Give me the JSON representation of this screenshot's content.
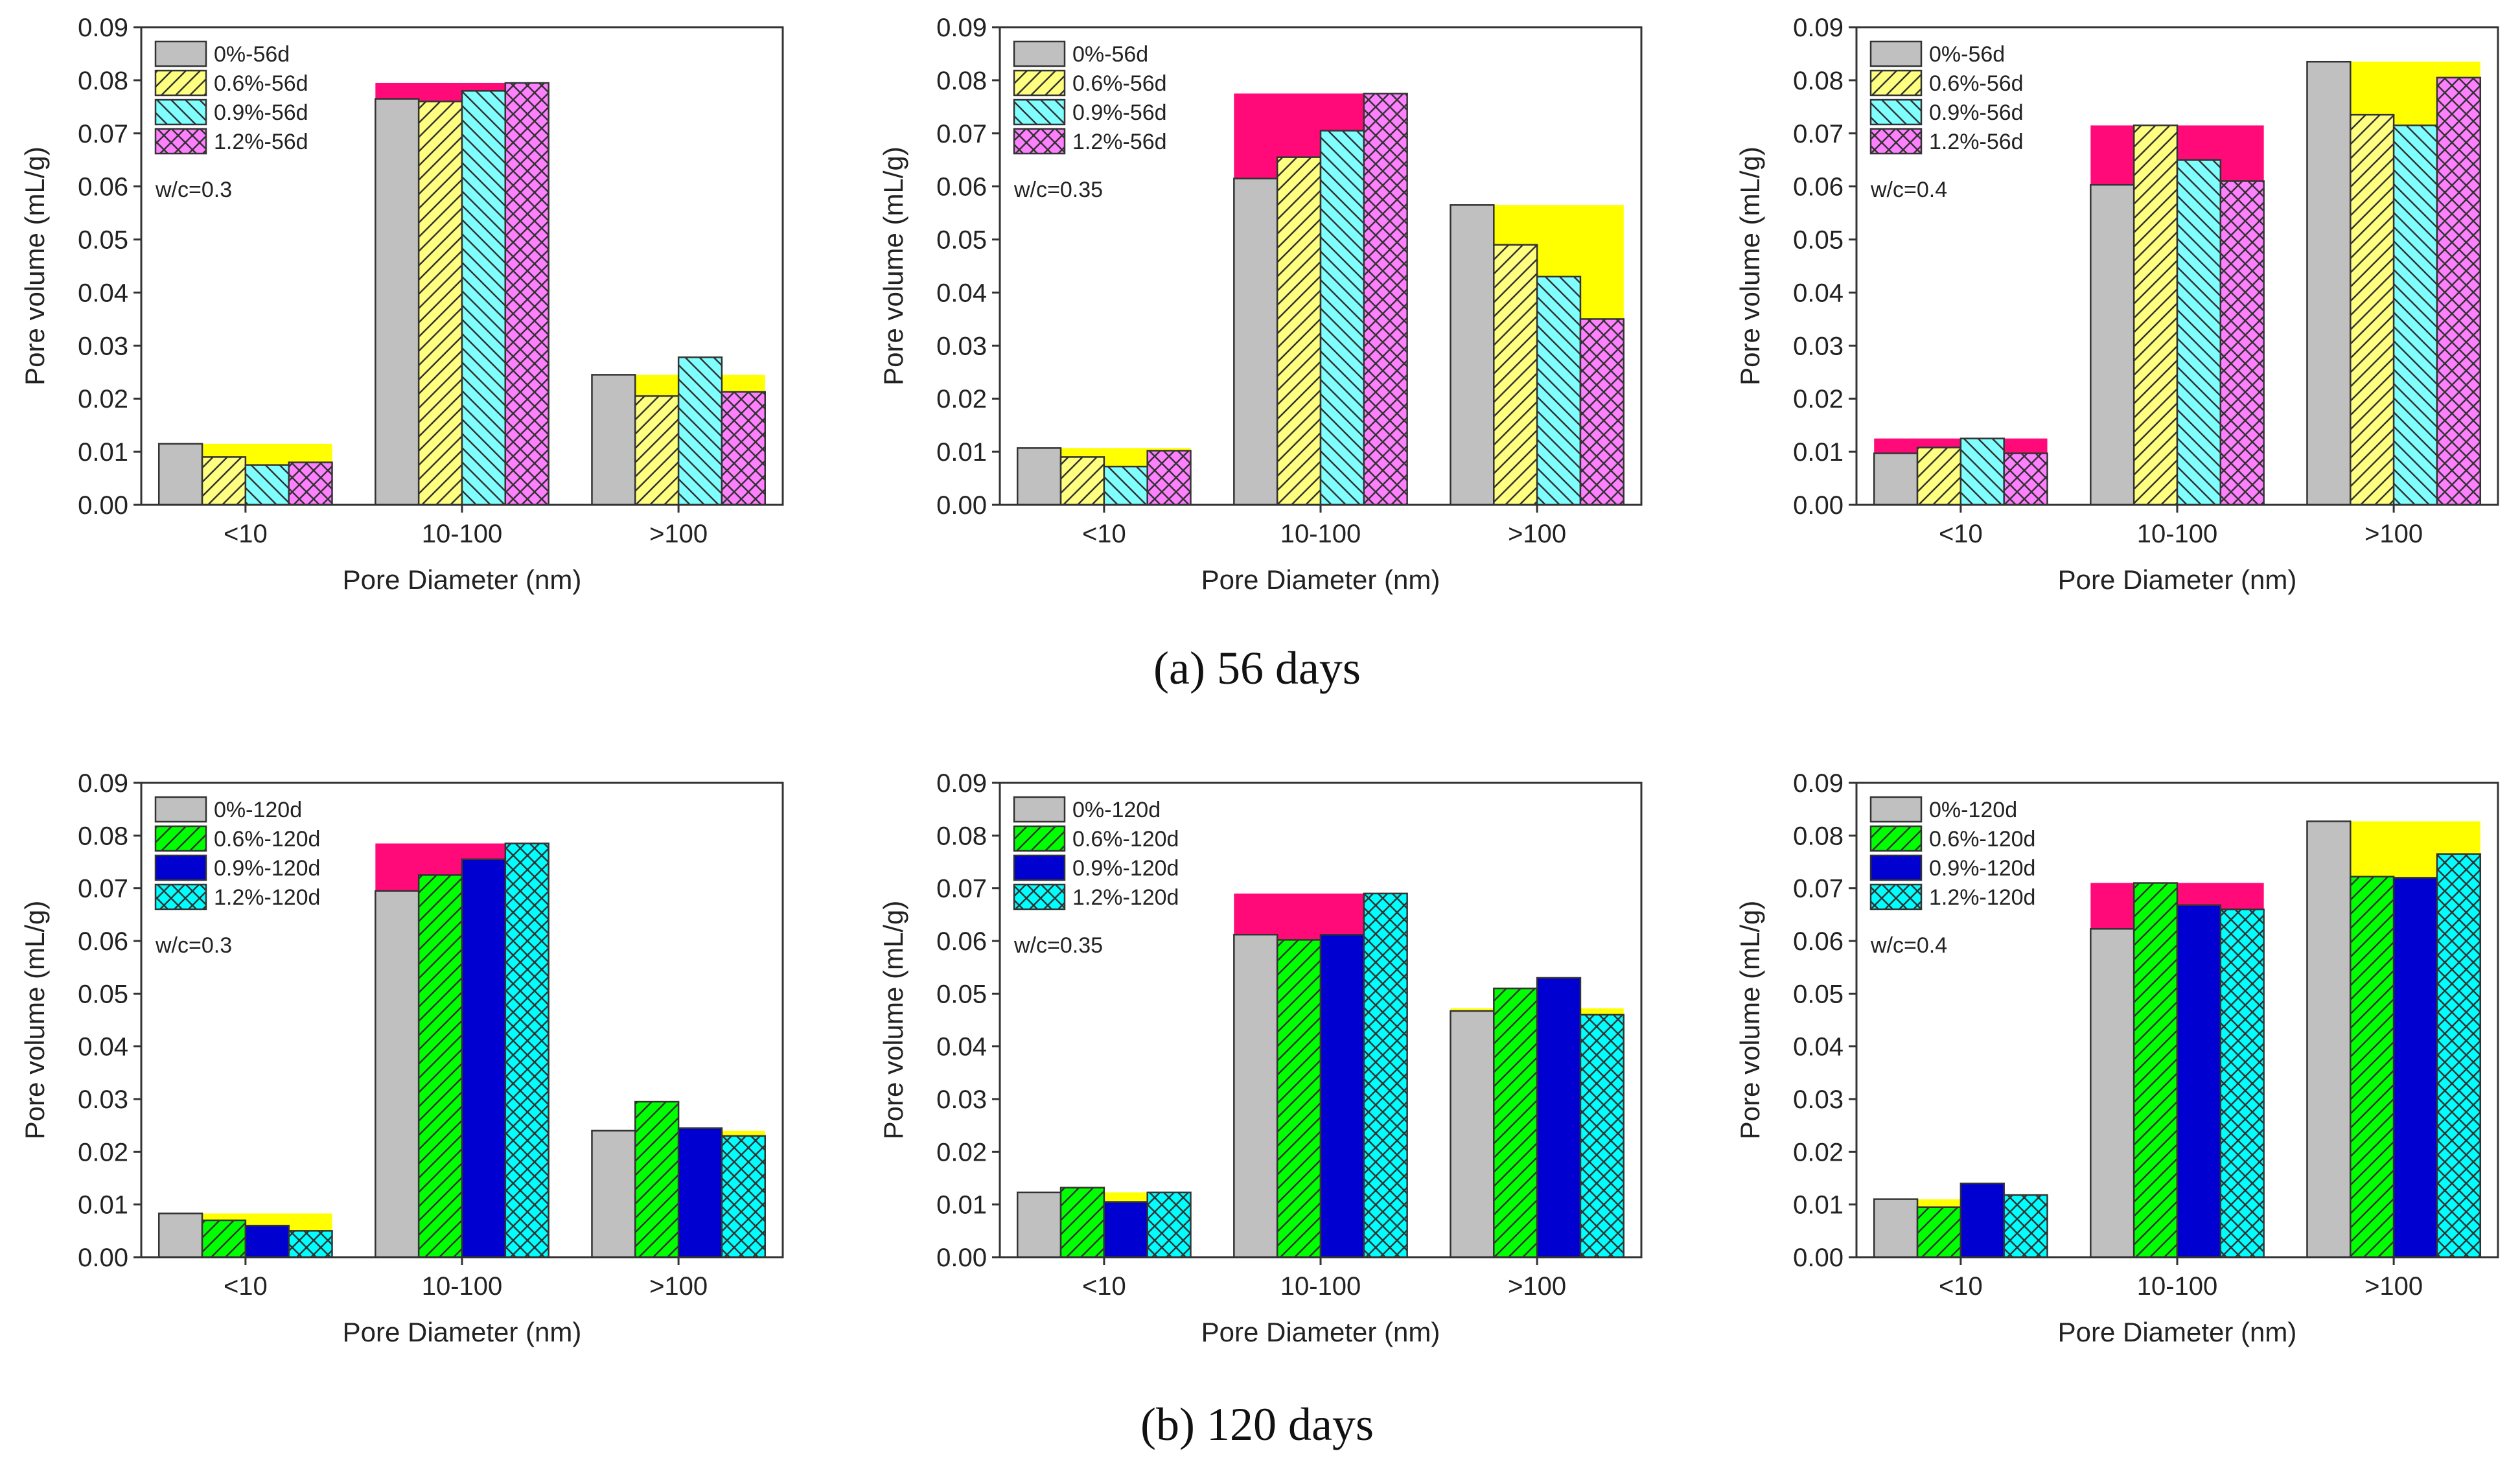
{
  "captions": {
    "a": "(a) 56 days",
    "b": "(b) 120 days"
  },
  "colors": {
    "band_pink": "#ff0a78",
    "band_yellow": "#ffff00",
    "gray": "#c0c0c0",
    "yellow": "#ffff80",
    "lightcyan": "#80ffff",
    "magenta": "#ff80ff",
    "green": "#00ff00",
    "blue": "#0000d0",
    "cyan": "#00ffff"
  },
  "chart_data": [
    {
      "type": "bar",
      "row": "a",
      "annotation": "w/c=0.3",
      "xlabel": "Pore Diameter (nm)",
      "ylabel": "Pore volume (mL/g)",
      "ylim": [
        0,
        0.09
      ],
      "yticks": [
        "0.00",
        "0.01",
        "0.02",
        "0.03",
        "0.04",
        "0.05",
        "0.06",
        "0.07",
        "0.08",
        "0.09"
      ],
      "legend_position": "top-left",
      "categories": [
        "<10",
        "10-100",
        ">100"
      ],
      "series": [
        {
          "name": "0%-56d",
          "fill": "gray",
          "pattern": "solid",
          "values": [
            0.0115,
            0.0765,
            0.0245
          ]
        },
        {
          "name": "0.6%-56d",
          "fill": "yellow",
          "pattern": "hatch-right",
          "values": [
            0.009,
            0.076,
            0.0205
          ]
        },
        {
          "name": "0.9%-56d",
          "fill": "lightcyan",
          "pattern": "hatch-left",
          "values": [
            0.0075,
            0.078,
            0.0278
          ]
        },
        {
          "name": "1.2%-56d",
          "fill": "magenta",
          "pattern": "cross",
          "values": [
            0.008,
            0.0795,
            0.0213
          ]
        }
      ],
      "bands": [
        {
          "category": 0,
          "from": 1,
          "to": 3,
          "top": 0.0115,
          "color": "band_yellow"
        },
        {
          "category": 1,
          "from": 0,
          "to": 2,
          "top": 0.0795,
          "color": "band_pink"
        },
        {
          "category": 2,
          "from": 1,
          "to": 3,
          "top": 0.0245,
          "color": "band_yellow"
        }
      ]
    },
    {
      "type": "bar",
      "row": "a",
      "annotation": "w/c=0.35",
      "xlabel": "Pore Diameter (nm)",
      "ylabel": "Pore volume (mL/g)",
      "ylim": [
        0,
        0.09
      ],
      "yticks": [
        "0.00",
        "0.01",
        "0.02",
        "0.03",
        "0.04",
        "0.05",
        "0.06",
        "0.07",
        "0.08",
        "0.09"
      ],
      "legend_position": "top-left",
      "categories": [
        "<10",
        "10-100",
        ">100"
      ],
      "series": [
        {
          "name": "0%-56d",
          "fill": "gray",
          "pattern": "solid",
          "values": [
            0.0107,
            0.0615,
            0.0565
          ]
        },
        {
          "name": "0.6%-56d",
          "fill": "yellow",
          "pattern": "hatch-right",
          "values": [
            0.009,
            0.0655,
            0.049
          ]
        },
        {
          "name": "0.9%-56d",
          "fill": "lightcyan",
          "pattern": "hatch-left",
          "values": [
            0.0072,
            0.0705,
            0.043
          ]
        },
        {
          "name": "1.2%-56d",
          "fill": "magenta",
          "pattern": "cross",
          "values": [
            0.0102,
            0.0775,
            0.035
          ]
        }
      ],
      "bands": [
        {
          "category": 0,
          "from": 1,
          "to": 3,
          "top": 0.0107,
          "color": "band_yellow"
        },
        {
          "category": 1,
          "from": 0,
          "to": 2,
          "top": 0.0775,
          "color": "band_pink"
        },
        {
          "category": 2,
          "from": 1,
          "to": 3,
          "top": 0.0565,
          "color": "band_yellow"
        }
      ]
    },
    {
      "type": "bar",
      "row": "a",
      "annotation": "w/c=0.4",
      "xlabel": "Pore Diameter (nm)",
      "ylabel": "Pore volume (mL/g)",
      "ylim": [
        0,
        0.09
      ],
      "yticks": [
        "0.00",
        "0.01",
        "0.02",
        "0.03",
        "0.04",
        "0.05",
        "0.06",
        "0.07",
        "0.08",
        "0.09"
      ],
      "legend_position": "top-left",
      "categories": [
        "<10",
        "10-100",
        ">100"
      ],
      "series": [
        {
          "name": "0%-56d",
          "fill": "gray",
          "pattern": "solid",
          "values": [
            0.0097,
            0.0603,
            0.0835
          ]
        },
        {
          "name": "0.6%-56d",
          "fill": "yellow",
          "pattern": "hatch-right",
          "values": [
            0.0108,
            0.0715,
            0.0735
          ]
        },
        {
          "name": "0.9%-56d",
          "fill": "lightcyan",
          "pattern": "hatch-left",
          "values": [
            0.0125,
            0.065,
            0.0715
          ]
        },
        {
          "name": "1.2%-56d",
          "fill": "magenta",
          "pattern": "cross",
          "values": [
            0.0097,
            0.061,
            0.0805
          ]
        }
      ],
      "bands": [
        {
          "category": 0,
          "from": 0,
          "to": 3,
          "top": 0.0125,
          "color": "band_pink"
        },
        {
          "category": 1,
          "from": 0,
          "to": 3,
          "top": 0.0715,
          "color": "band_pink"
        },
        {
          "category": 2,
          "from": 1,
          "to": 3,
          "top": 0.0835,
          "color": "band_yellow"
        }
      ]
    },
    {
      "type": "bar",
      "row": "b",
      "annotation": "w/c=0.3",
      "xlabel": "Pore Diameter (nm)",
      "ylabel": "Pore volume (mL/g)",
      "ylim": [
        0,
        0.09
      ],
      "yticks": [
        "0.00",
        "0.01",
        "0.02",
        "0.03",
        "0.04",
        "0.05",
        "0.06",
        "0.07",
        "0.08",
        "0.09"
      ],
      "legend_position": "top-left",
      "categories": [
        "<10",
        "10-100",
        ">100"
      ],
      "series": [
        {
          "name": "0%-120d",
          "fill": "gray",
          "pattern": "solid",
          "values": [
            0.0083,
            0.0695,
            0.024
          ]
        },
        {
          "name": "0.6%-120d",
          "fill": "green",
          "pattern": "hatch-right",
          "values": [
            0.007,
            0.0725,
            0.0295
          ]
        },
        {
          "name": "0.9%-120d",
          "fill": "blue",
          "pattern": "solid",
          "values": [
            0.006,
            0.0755,
            0.0245
          ]
        },
        {
          "name": "1.2%-120d",
          "fill": "cyan",
          "pattern": "cross",
          "values": [
            0.005,
            0.0785,
            0.023
          ]
        }
      ],
      "bands": [
        {
          "category": 0,
          "from": 1,
          "to": 3,
          "top": 0.0083,
          "color": "band_yellow"
        },
        {
          "category": 1,
          "from": 0,
          "to": 2,
          "top": 0.0785,
          "color": "band_pink"
        },
        {
          "category": 2,
          "from": 3,
          "to": 3,
          "top": 0.024,
          "color": "band_yellow"
        }
      ]
    },
    {
      "type": "bar",
      "row": "b",
      "annotation": "w/c=0.35",
      "xlabel": "Pore Diameter (nm)",
      "ylabel": "Pore volume (mL/g)",
      "ylim": [
        0,
        0.09
      ],
      "yticks": [
        "0.00",
        "0.01",
        "0.02",
        "0.03",
        "0.04",
        "0.05",
        "0.06",
        "0.07",
        "0.08",
        "0.09"
      ],
      "legend_position": "top-left",
      "categories": [
        "<10",
        "10-100",
        ">100"
      ],
      "series": [
        {
          "name": "0%-120d",
          "fill": "gray",
          "pattern": "solid",
          "values": [
            0.0123,
            0.0612,
            0.0467
          ]
        },
        {
          "name": "0.6%-120d",
          "fill": "green",
          "pattern": "hatch-right",
          "values": [
            0.0132,
            0.0602,
            0.051
          ]
        },
        {
          "name": "0.9%-120d",
          "fill": "blue",
          "pattern": "solid",
          "values": [
            0.0105,
            0.0612,
            0.053
          ]
        },
        {
          "name": "1.2%-120d",
          "fill": "cyan",
          "pattern": "cross",
          "values": [
            0.0123,
            0.069,
            0.046
          ]
        }
      ],
      "bands": [
        {
          "category": 0,
          "from": 2,
          "to": 2,
          "top": 0.0123,
          "color": "band_yellow"
        },
        {
          "category": 1,
          "from": 0,
          "to": 2,
          "top": 0.069,
          "color": "band_pink"
        },
        {
          "category": 2,
          "from": 0,
          "to": 3,
          "top": 0.0472,
          "color": "band_yellow"
        }
      ]
    },
    {
      "type": "bar",
      "row": "b",
      "annotation": "w/c=0.4",
      "xlabel": "Pore Diameter (nm)",
      "ylabel": "Pore volume (mL/g)",
      "ylim": [
        0,
        0.09
      ],
      "yticks": [
        "0.00",
        "0.01",
        "0.02",
        "0.03",
        "0.04",
        "0.05",
        "0.06",
        "0.07",
        "0.08",
        "0.09"
      ],
      "legend_position": "top-left",
      "categories": [
        "<10",
        "10-100",
        ">100"
      ],
      "series": [
        {
          "name": "0%-120d",
          "fill": "gray",
          "pattern": "solid",
          "values": [
            0.011,
            0.0623,
            0.0827
          ]
        },
        {
          "name": "0.6%-120d",
          "fill": "green",
          "pattern": "hatch-right",
          "values": [
            0.0095,
            0.071,
            0.0722
          ]
        },
        {
          "name": "0.9%-120d",
          "fill": "blue",
          "pattern": "solid",
          "values": [
            0.014,
            0.0668,
            0.072
          ]
        },
        {
          "name": "1.2%-120d",
          "fill": "cyan",
          "pattern": "cross",
          "values": [
            0.0118,
            0.066,
            0.0765
          ]
        }
      ],
      "bands": [
        {
          "category": 0,
          "from": 1,
          "to": 1,
          "top": 0.011,
          "color": "band_yellow"
        },
        {
          "category": 1,
          "from": 0,
          "to": 3,
          "top": 0.071,
          "color": "band_pink"
        },
        {
          "category": 2,
          "from": 1,
          "to": 3,
          "top": 0.0827,
          "color": "band_yellow"
        }
      ]
    }
  ]
}
